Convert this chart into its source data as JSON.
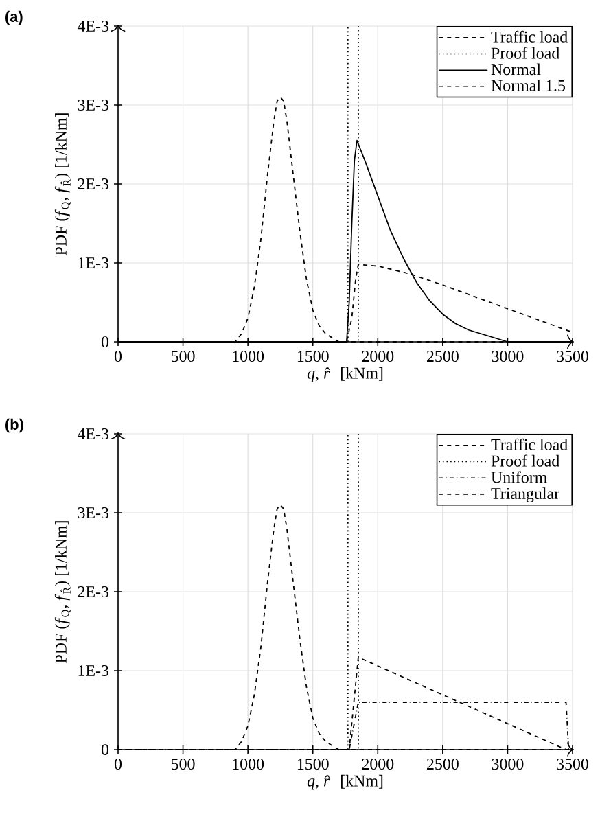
{
  "chart_data": [
    {
      "type": "line",
      "title": "(a)",
      "xlabel": "*q*, *r̂* [kNm]",
      "ylabel": "PDF (*f*$_{Q}$, *f*$_{R̂}$) [1/kNm]",
      "xlim": [
        0,
        3500
      ],
      "ylim": [
        0,
        0.004
      ],
      "xticks": [
        0,
        500,
        1000,
        1500,
        2000,
        2500,
        3000,
        3500
      ],
      "yticks": [
        0,
        {
          "value": 0.001,
          "label": "1E-3"
        },
        {
          "value": 0.002,
          "label": "2E-3"
        },
        {
          "value": 0.003,
          "label": "3E-3"
        },
        {
          "value": 0.004,
          "label": "4E-3"
        }
      ],
      "grid": true,
      "legend": "top right",
      "marker": "none",
      "series": [
        {
          "name": "Traffic load",
          "color": "#000000",
          "line_style": "dashed",
          "x": [
            0,
            900,
            950,
            1000,
            1050,
            1100,
            1150,
            1200,
            1225,
            1250,
            1275,
            1300,
            1350,
            1400,
            1450,
            1500,
            1550,
            1600,
            1650,
            1700,
            3500
          ],
          "values": [
            0,
            0,
            0.0001,
            0.0003,
            0.0007,
            0.0013,
            0.0021,
            0.0028,
            0.00305,
            0.0031,
            0.00305,
            0.0028,
            0.0021,
            0.0014,
            0.0008,
            0.0004,
            0.0002,
            0.0001,
            5e-05,
            0,
            0
          ]
        },
        {
          "name": "Proof load",
          "color": "#000000",
          "line_style": "dotted",
          "x": [
            1770,
            1770
          ],
          "values": [
            0,
            0.004
          ]
        },
        {
          "color": "#000000",
          "line_style": "dotted",
          "x": [
            1850,
            1850
          ],
          "values": [
            0.004,
            0
          ]
        },
        {
          "name": "Normal",
          "color": "#000000",
          "line_style": "solid",
          "x": [
            0,
            1760,
            1780,
            1800,
            1820,
            1840,
            1900,
            2000,
            2100,
            2200,
            2300,
            2400,
            2500,
            2600,
            2700,
            2800,
            2900,
            3000,
            3500
          ],
          "values": [
            0,
            0,
            0.0005,
            0.0015,
            0.0023,
            0.00255,
            0.0023,
            0.00185,
            0.0014,
            0.00105,
            0.00075,
            0.00052,
            0.00035,
            0.00023,
            0.00015,
            0.0001,
            5e-05,
            0,
            0
          ]
        },
        {
          "name": "Normal 1.5",
          "color": "#000000",
          "line_style": "dashed",
          "x": [
            0,
            1760,
            1800,
            1830,
            1850,
            2000,
            2250,
            2500,
            2750,
            3000,
            3250,
            3500
          ],
          "values": [
            0,
            0,
            0.0003,
            0.0008,
            0.00098,
            0.00096,
            0.00086,
            0.00072,
            0.00057,
            0.00042,
            0.00027,
            0.00012
          ]
        }
      ]
    },
    {
      "type": "line",
      "title": "(b)",
      "xlabel": "*q*, *r̂* [kNm]",
      "ylabel": "PDF (*f*$_{Q}$, *f*$_{R̂}$) [1/kNm]",
      "xlim": [
        0,
        3500
      ],
      "ylim": [
        0,
        0.004
      ],
      "xticks": [
        0,
        500,
        1000,
        1500,
        2000,
        2500,
        3000,
        3500
      ],
      "yticks": [
        0,
        {
          "value": 0.001,
          "label": "1E-3"
        },
        {
          "value": 0.002,
          "label": "2E-3"
        },
        {
          "value": 0.003,
          "label": "3E-3"
        },
        {
          "value": 0.004,
          "label": "4E-3"
        }
      ],
      "grid": true,
      "legend": "top right",
      "marker": "none",
      "series": [
        {
          "name": "Traffic load",
          "color": "#000000",
          "line_style": "dashed",
          "x": [
            0,
            900,
            950,
            1000,
            1050,
            1100,
            1150,
            1200,
            1225,
            1250,
            1275,
            1300,
            1350,
            1400,
            1450,
            1500,
            1550,
            1600,
            1650,
            1700,
            3500
          ],
          "values": [
            0,
            0,
            0.0001,
            0.0003,
            0.0007,
            0.0013,
            0.0021,
            0.0028,
            0.00305,
            0.0031,
            0.00305,
            0.0028,
            0.0021,
            0.0014,
            0.0008,
            0.0004,
            0.0002,
            0.0001,
            5e-05,
            0,
            0
          ]
        },
        {
          "name": "Proof load",
          "color": "#000000",
          "line_style": "dotted",
          "x": [
            1770,
            1770
          ],
          "values": [
            0,
            0.004
          ]
        },
        {
          "color": "#000000",
          "line_style": "dotted",
          "x": [
            1850,
            1850
          ],
          "values": [
            0.004,
            0
          ]
        },
        {
          "name": "Uniform",
          "color": "#000000",
          "line_style": "dashdot",
          "x": [
            0,
            1780,
            1850,
            1850,
            3450,
            3470
          ],
          "values": [
            0,
            0,
            0.0006,
            0.0006,
            0.0006,
            0
          ]
        },
        {
          "name": "Triangular",
          "color": "#000000",
          "line_style": "dashed",
          "x": [
            0,
            1780,
            1850,
            3450
          ],
          "values": [
            0,
            0,
            0.00117,
            0
          ]
        }
      ]
    }
  ]
}
